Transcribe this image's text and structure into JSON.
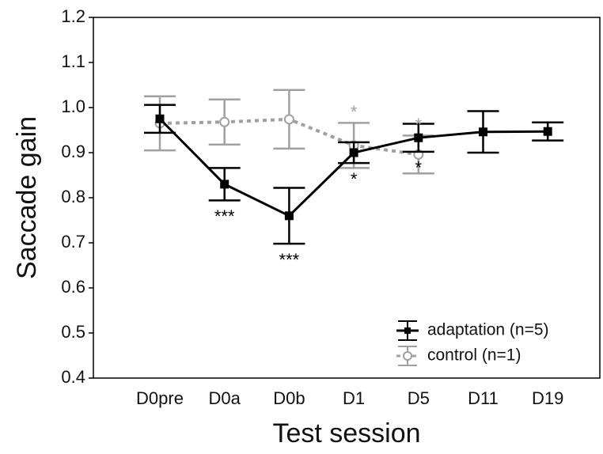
{
  "chart_data": {
    "type": "line",
    "xlabel": "Test session",
    "ylabel": "Saccade gain",
    "categories": [
      "D0pre",
      "D0a",
      "D0b",
      "D1",
      "D5",
      "D11",
      "D19"
    ],
    "series": [
      {
        "name": "control (n=1)",
        "color": "#a0a0a0",
        "line_style": "dotted",
        "marker": "circle-open",
        "values": [
          0.965,
          0.968,
          0.974,
          0.916,
          0.896,
          null,
          null
        ],
        "errors": [
          0.06,
          0.05,
          0.065,
          0.05,
          0.042,
          null,
          null
        ]
      },
      {
        "name": "adaptation (n=5)",
        "color": "#000000",
        "line_style": "solid",
        "marker": "square",
        "values": [
          0.975,
          0.83,
          0.76,
          0.9,
          0.933,
          0.946,
          0.947
        ],
        "errors": [
          0.031,
          0.036,
          0.062,
          0.023,
          0.031,
          0.046,
          0.02
        ]
      }
    ],
    "annotations": [
      {
        "text": "***",
        "category": 1,
        "series": 1
      },
      {
        "text": "***",
        "category": 2,
        "series": 1
      },
      {
        "text": "*",
        "category": 3,
        "series": 1
      },
      {
        "text": "*",
        "category": 4,
        "series": 1
      },
      {
        "text": "*",
        "category": 3,
        "series": 0
      },
      {
        "text": "*",
        "category": 4,
        "series": 0
      }
    ],
    "ylim": [
      0.4,
      1.2
    ],
    "yticks": [
      0.4,
      0.5,
      0.6,
      0.7,
      0.8,
      0.9,
      {
        "value": 1,
        "label": "1.0"
      },
      1.1,
      1.2
    ],
    "legend": "lower right"
  }
}
